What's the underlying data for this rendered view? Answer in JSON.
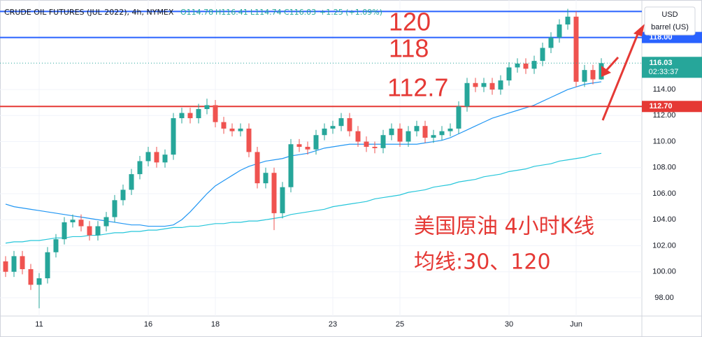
{
  "chart_data": {
    "type": "candlestick",
    "title": "CRUDE OIL FUTURES (JUL 2022), 4h, NYMEX",
    "header_stats": [
      "O114.78",
      "H116.41",
      "L114.74",
      "C116.03",
      "+1.25 (+1.09%)"
    ],
    "currency": "USD",
    "unit": "barrel (US)",
    "annotations": [
      "120",
      "118",
      "112.7"
    ],
    "notes": [
      "美国原油 4小时K线",
      "均线:30、120"
    ],
    "categories": [
      null,
      null,
      null,
      null,
      "11",
      null,
      null,
      null,
      null,
      null,
      null,
      null,
      null,
      null,
      null,
      null,
      null,
      "16",
      null,
      null,
      null,
      null,
      null,
      null,
      null,
      "18",
      null,
      null,
      null,
      null,
      null,
      null,
      null,
      null,
      null,
      null,
      null,
      null,
      null,
      "23",
      null,
      null,
      null,
      null,
      null,
      null,
      null,
      "25",
      null,
      null,
      null,
      null,
      null,
      null,
      null,
      null,
      null,
      null,
      null,
      null,
      "30",
      null,
      null,
      null,
      null,
      null,
      null,
      null,
      "Jun",
      null,
      null,
      null
    ],
    "open": [
      100.8,
      100.0,
      101.2,
      100.2,
      99.0,
      99.5,
      101.5,
      102.5,
      103.8,
      104.0,
      103.5,
      102.8,
      103.5,
      104.2,
      105.5,
      106.3,
      107.5,
      108.5,
      109.2,
      108.4,
      109.0,
      111.8,
      112.2,
      111.8,
      112.5,
      112.8,
      111.5,
      111.0,
      110.8,
      111.0,
      109.2,
      106.8,
      107.6,
      104.5,
      106.5,
      109.8,
      109.6,
      109.4,
      110.5,
      111.0,
      111.2,
      111.8,
      110.8,
      110.0,
      109.6,
      109.5,
      110.5,
      111.0,
      110.0,
      110.8,
      111.2,
      110.3,
      110.5,
      110.8,
      111.0,
      112.7,
      114.5,
      114.2,
      114.5,
      114.0,
      114.7,
      115.7,
      116.0,
      115.6,
      116.2,
      117.2,
      118.0,
      119.0,
      119.6,
      114.6,
      115.5,
      114.78
    ],
    "high": [
      101.2,
      101.6,
      101.6,
      100.6,
      99.9,
      101.9,
      102.9,
      104.2,
      104.4,
      104.4,
      103.9,
      103.9,
      104.6,
      105.9,
      106.7,
      107.9,
      108.9,
      109.6,
      109.6,
      109.4,
      112.2,
      112.6,
      112.6,
      112.9,
      113.3,
      113.2,
      111.9,
      111.4,
      111.4,
      111.4,
      109.6,
      108.0,
      108.0,
      106.9,
      110.2,
      110.2,
      110.0,
      110.9,
      111.4,
      111.6,
      112.2,
      112.2,
      111.2,
      110.4,
      110.0,
      110.9,
      111.4,
      111.4,
      111.2,
      111.6,
      111.6,
      110.9,
      111.2,
      111.4,
      113.1,
      114.9,
      114.9,
      114.9,
      114.9,
      115.1,
      116.1,
      116.4,
      116.4,
      116.6,
      117.6,
      118.4,
      119.4,
      120.2,
      120.0,
      115.9,
      115.9,
      116.41
    ],
    "low": [
      99.6,
      99.6,
      99.8,
      98.6,
      97.2,
      99.1,
      101.1,
      102.1,
      103.4,
      103.1,
      102.4,
      102.4,
      103.1,
      103.8,
      105.1,
      105.9,
      107.1,
      108.1,
      108.0,
      108.0,
      108.6,
      111.4,
      111.4,
      111.4,
      112.1,
      111.1,
      110.6,
      110.4,
      110.4,
      108.8,
      106.4,
      106.4,
      103.2,
      104.1,
      106.1,
      109.2,
      109.0,
      109.0,
      110.1,
      110.6,
      110.8,
      110.4,
      109.6,
      109.2,
      109.1,
      109.1,
      110.1,
      109.6,
      109.6,
      110.4,
      109.9,
      109.9,
      110.1,
      110.4,
      110.6,
      112.3,
      113.8,
      113.8,
      113.6,
      113.6,
      114.3,
      115.3,
      115.2,
      115.2,
      115.8,
      116.8,
      117.6,
      118.6,
      114.2,
      114.2,
      114.4,
      114.74
    ],
    "close": [
      100.0,
      101.2,
      100.2,
      99.0,
      99.5,
      101.5,
      102.5,
      103.8,
      104.0,
      103.5,
      102.8,
      103.5,
      104.2,
      105.5,
      106.3,
      107.5,
      108.5,
      109.2,
      108.4,
      109.0,
      111.8,
      112.2,
      111.8,
      112.5,
      112.8,
      111.5,
      111.0,
      110.8,
      111.0,
      109.2,
      106.8,
      107.6,
      104.5,
      106.5,
      109.8,
      109.6,
      109.4,
      110.5,
      111.0,
      111.2,
      111.8,
      110.8,
      110.0,
      109.6,
      109.5,
      110.5,
      111.0,
      110.0,
      110.8,
      111.2,
      110.3,
      110.5,
      110.8,
      111.0,
      112.7,
      114.5,
      114.2,
      114.5,
      114.0,
      114.7,
      115.7,
      116.0,
      115.6,
      116.2,
      117.2,
      118.0,
      119.0,
      119.6,
      114.6,
      115.5,
      114.78,
      116.03
    ],
    "up_color": "#26a69a",
    "down_color": "#ef5350",
    "moving_averages": [
      {
        "color": "#2196f3",
        "values": [
          105.2,
          105.0,
          104.9,
          104.8,
          104.7,
          104.6,
          104.5,
          104.4,
          104.3,
          104.2,
          104.1,
          104.0,
          103.9,
          103.8,
          103.7,
          103.6,
          103.6,
          103.5,
          103.5,
          103.5,
          103.6,
          104.0,
          104.6,
          105.3,
          106.0,
          106.6,
          107.0,
          107.4,
          107.8,
          108.1,
          108.3,
          108.5,
          108.6,
          108.7,
          108.9,
          109.0,
          109.1,
          109.3,
          109.5,
          109.6,
          109.7,
          109.8,
          109.8,
          109.8,
          109.8,
          109.8,
          109.8,
          109.8,
          109.8,
          109.8,
          109.9,
          110.0,
          110.1,
          110.3,
          110.6,
          110.9,
          111.2,
          111.5,
          111.8,
          112.0,
          112.2,
          112.4,
          112.6,
          112.8,
          113.1,
          113.4,
          113.7,
          114.0,
          114.2,
          114.4,
          114.5,
          114.6
        ]
      },
      {
        "color": "#26c6da",
        "values": [
          102.2,
          102.3,
          102.3,
          102.4,
          102.4,
          102.5,
          102.6,
          102.6,
          102.7,
          102.7,
          102.8,
          102.8,
          102.9,
          103.0,
          103.0,
          103.1,
          103.1,
          103.2,
          103.2,
          103.3,
          103.4,
          103.4,
          103.5,
          103.5,
          103.6,
          103.7,
          103.7,
          103.8,
          103.8,
          103.9,
          103.9,
          104.0,
          104.1,
          104.2,
          104.4,
          104.5,
          104.6,
          104.7,
          104.8,
          105.0,
          105.1,
          105.2,
          105.3,
          105.4,
          105.6,
          105.7,
          105.8,
          105.9,
          106.1,
          106.2,
          106.3,
          106.5,
          106.6,
          106.7,
          106.9,
          107.0,
          107.1,
          107.3,
          107.4,
          107.5,
          107.7,
          107.8,
          107.9,
          108.1,
          108.2,
          108.3,
          108.5,
          108.6,
          108.7,
          108.8,
          109.0,
          109.1
        ]
      }
    ],
    "hlines": [
      {
        "value": 120,
        "color": "#2962ff"
      },
      {
        "value": 118,
        "color": "#2962ff",
        "label": "118.00"
      },
      {
        "value": 112.7,
        "color": "#e53935",
        "label": "112.70"
      }
    ],
    "last": {
      "value": 116.03,
      "label": "116.03",
      "countdown": "02:33:37",
      "color": "#26a69a"
    },
    "ylim": [
      96.6,
      120.88
    ],
    "yticks": [
      {
        "value": 98,
        "label": "98.00"
      },
      {
        "value": 100,
        "label": "100.00"
      },
      {
        "value": 102,
        "label": "102.00"
      },
      {
        "value": 104,
        "label": "104.00"
      },
      {
        "value": 106,
        "label": "106.00"
      },
      {
        "value": 108,
        "label": "108.00"
      },
      {
        "value": 110,
        "label": "110.00"
      },
      {
        "value": 112,
        "label": "112.00"
      },
      {
        "value": 114,
        "label": "114.00"
      }
    ],
    "grid": true
  }
}
